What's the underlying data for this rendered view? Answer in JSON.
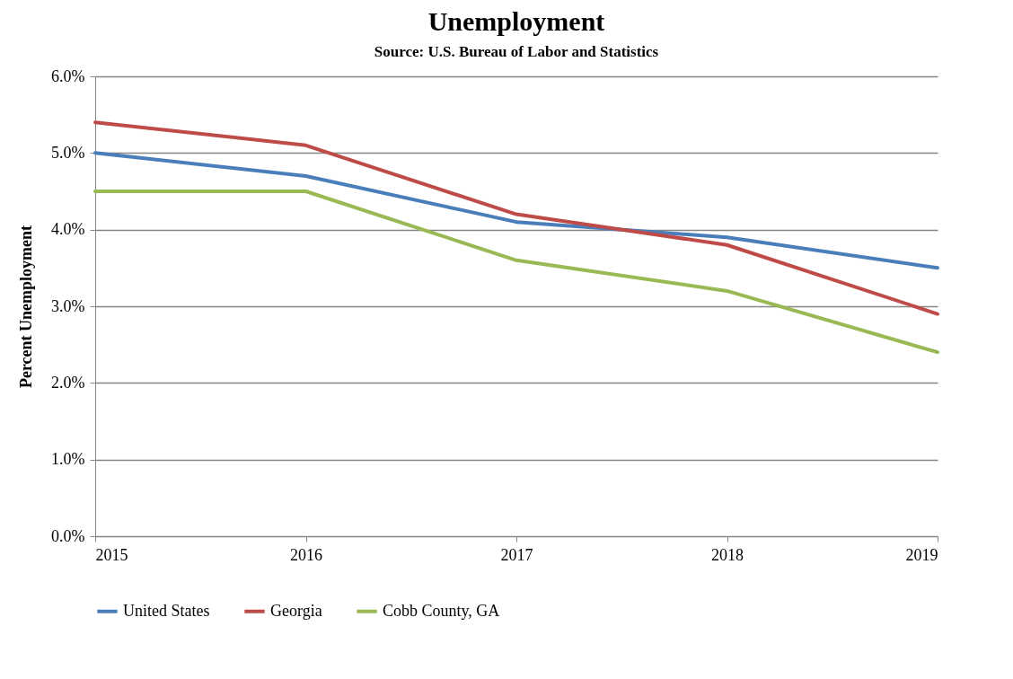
{
  "chart_data": {
    "type": "line",
    "title": "Unemployment",
    "subtitle": "Source: U.S. Bureau of Labor and Statistics",
    "ylabel": "Percent  Unemployment",
    "categories": [
      "2015",
      "2016",
      "2017",
      "2018",
      "2019"
    ],
    "series": [
      {
        "name": "United States",
        "color": "#4a7ebb",
        "values": [
          5.0,
          4.7,
          4.1,
          3.9,
          3.5
        ]
      },
      {
        "name": "Georgia",
        "color": "#be4b48",
        "values": [
          5.4,
          5.1,
          4.2,
          3.8,
          2.9
        ]
      },
      {
        "name": "Cobb County, GA",
        "color": "#98b954",
        "values": [
          4.5,
          4.5,
          3.6,
          3.2,
          2.4
        ]
      }
    ],
    "ylim": [
      0,
      6
    ],
    "yticks": [
      {
        "value": 0,
        "label": "0.0%"
      },
      {
        "value": 1,
        "label": "1.0%"
      },
      {
        "value": 2,
        "label": "2.0%"
      },
      {
        "value": 3,
        "label": "3.0%"
      },
      {
        "value": 4,
        "label": "4.0%"
      },
      {
        "value": 5,
        "label": "5.0%"
      },
      {
        "value": 6,
        "label": "6.0%"
      }
    ],
    "grid": "y",
    "legend": "bottom",
    "marker": "none",
    "line_style": "solid"
  }
}
